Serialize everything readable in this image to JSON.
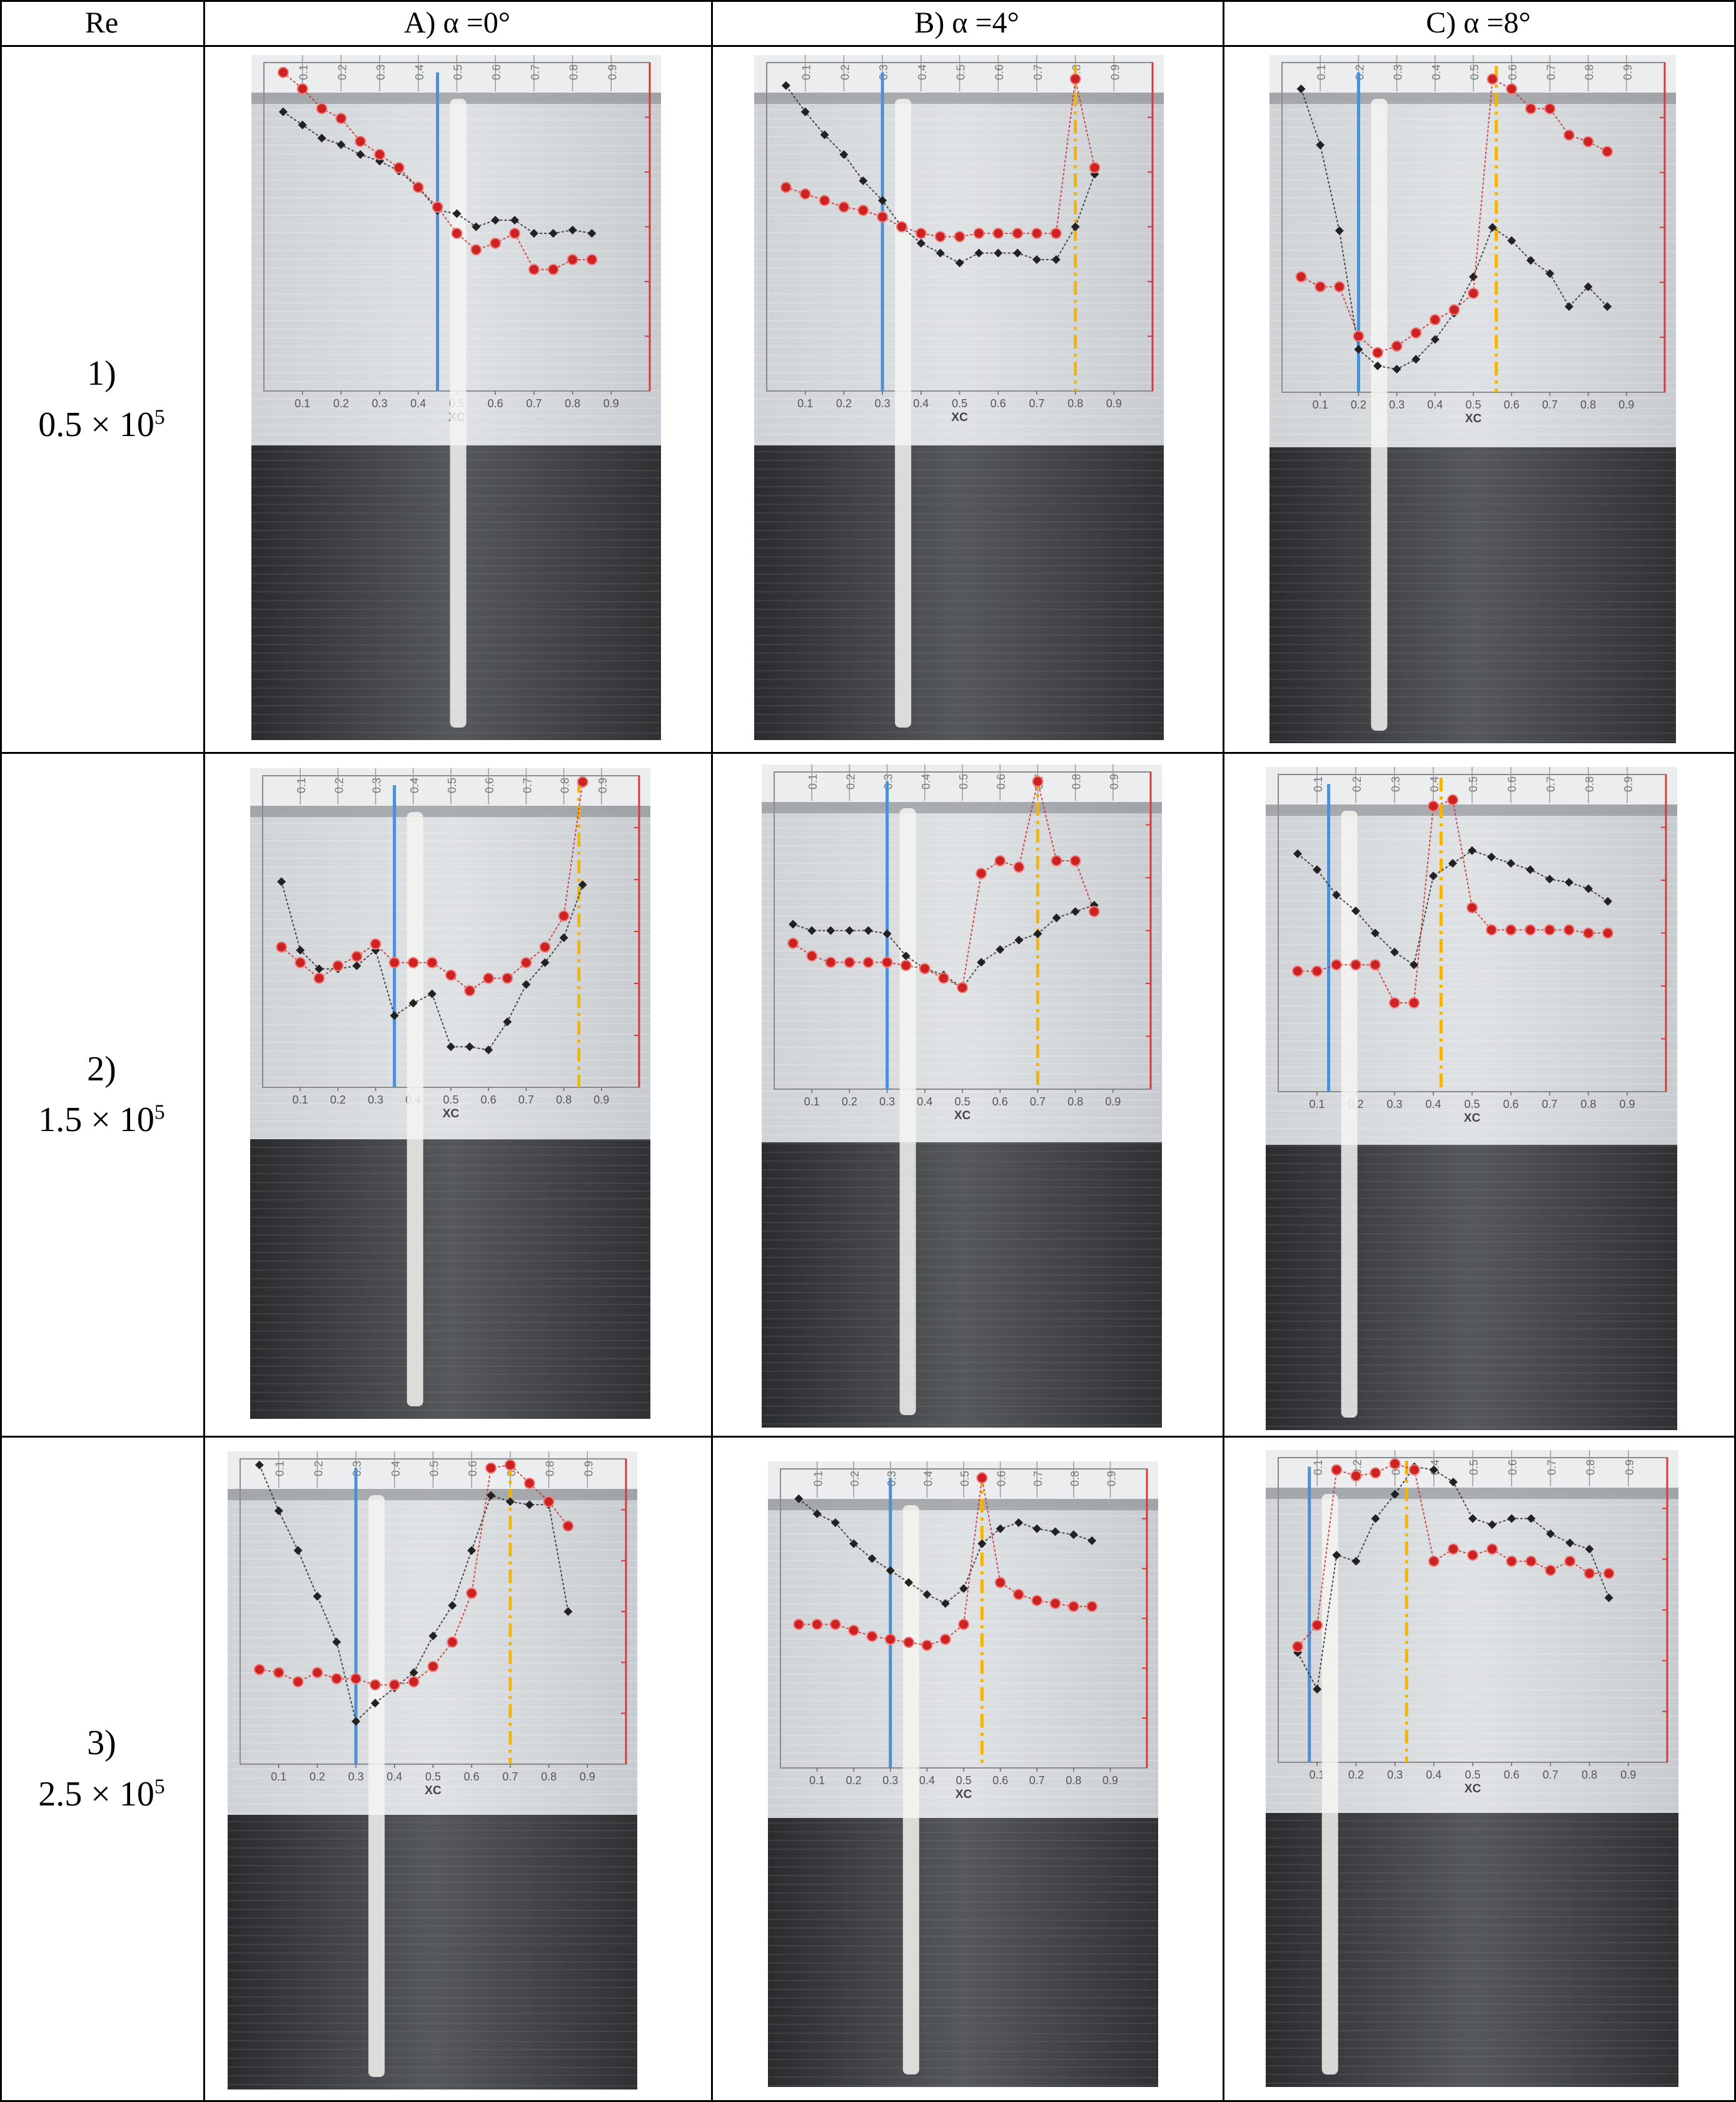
{
  "header": {
    "re_label": "Re",
    "columns": [
      {
        "label": "A)   α =0°"
      },
      {
        "label": "B)   α =4°"
      },
      {
        "label": "C)   α =8°"
      }
    ]
  },
  "rows": [
    {
      "index": "1)",
      "value": "0.5 × 10",
      "exp": "5"
    },
    {
      "index": "2)",
      "value": "1.5 × 10",
      "exp": "5"
    },
    {
      "index": "3)",
      "value": "2.5 × 10",
      "exp": "5"
    }
  ],
  "axis": {
    "xlabel": "XC",
    "ticks": [
      "0.1",
      "0.2",
      "0.3",
      "0.4",
      "0.5",
      "0.6",
      "0.7",
      "0.8",
      "0.9"
    ]
  },
  "colors": {
    "red_series": "#cc2222",
    "black_series": "#222222",
    "blue_line": "#4a90d9",
    "orange_line": "#f5b400"
  },
  "chart_data": [
    {
      "type": "scatter",
      "panel": "1A",
      "blue_xc": 0.45,
      "orange_xc": null,
      "red": [
        [
          0.05,
          0.97
        ],
        [
          0.1,
          0.92
        ],
        [
          0.15,
          0.86
        ],
        [
          0.2,
          0.83
        ],
        [
          0.25,
          0.76
        ],
        [
          0.3,
          0.72
        ],
        [
          0.35,
          0.68
        ],
        [
          0.4,
          0.62
        ],
        [
          0.45,
          0.56
        ],
        [
          0.5,
          0.48
        ],
        [
          0.55,
          0.43
        ],
        [
          0.6,
          0.45
        ],
        [
          0.65,
          0.48
        ],
        [
          0.7,
          0.37
        ],
        [
          0.75,
          0.37
        ],
        [
          0.8,
          0.4
        ],
        [
          0.85,
          0.4
        ]
      ],
      "black": [
        [
          0.05,
          0.85
        ],
        [
          0.1,
          0.81
        ],
        [
          0.15,
          0.77
        ],
        [
          0.2,
          0.75
        ],
        [
          0.25,
          0.72
        ],
        [
          0.3,
          0.7
        ],
        [
          0.35,
          0.67
        ],
        [
          0.4,
          0.62
        ],
        [
          0.45,
          0.55
        ],
        [
          0.5,
          0.54
        ],
        [
          0.55,
          0.5
        ],
        [
          0.6,
          0.52
        ],
        [
          0.65,
          0.52
        ],
        [
          0.7,
          0.48
        ],
        [
          0.75,
          0.48
        ],
        [
          0.8,
          0.49
        ],
        [
          0.85,
          0.48
        ]
      ]
    },
    {
      "type": "scatter",
      "panel": "1B",
      "blue_xc": 0.3,
      "orange_xc": 0.8,
      "red": [
        [
          0.05,
          0.62
        ],
        [
          0.1,
          0.6
        ],
        [
          0.15,
          0.58
        ],
        [
          0.2,
          0.56
        ],
        [
          0.25,
          0.55
        ],
        [
          0.3,
          0.53
        ],
        [
          0.35,
          0.5
        ],
        [
          0.4,
          0.48
        ],
        [
          0.45,
          0.47
        ],
        [
          0.5,
          0.47
        ],
        [
          0.55,
          0.48
        ],
        [
          0.6,
          0.48
        ],
        [
          0.65,
          0.48
        ],
        [
          0.7,
          0.48
        ],
        [
          0.75,
          0.48
        ],
        [
          0.8,
          0.95
        ],
        [
          0.85,
          0.68
        ]
      ],
      "black": [
        [
          0.05,
          0.93
        ],
        [
          0.1,
          0.85
        ],
        [
          0.15,
          0.78
        ],
        [
          0.2,
          0.72
        ],
        [
          0.25,
          0.64
        ],
        [
          0.3,
          0.58
        ],
        [
          0.35,
          0.5
        ],
        [
          0.4,
          0.45
        ],
        [
          0.45,
          0.42
        ],
        [
          0.5,
          0.39
        ],
        [
          0.55,
          0.42
        ],
        [
          0.6,
          0.42
        ],
        [
          0.65,
          0.42
        ],
        [
          0.7,
          0.4
        ],
        [
          0.75,
          0.4
        ],
        [
          0.8,
          0.5
        ],
        [
          0.85,
          0.66
        ]
      ]
    },
    {
      "type": "scatter",
      "panel": "1C",
      "blue_xc": 0.2,
      "orange_xc": 0.56,
      "red": [
        [
          0.05,
          0.35
        ],
        [
          0.1,
          0.32
        ],
        [
          0.15,
          0.32
        ],
        [
          0.2,
          0.17
        ],
        [
          0.25,
          0.12
        ],
        [
          0.3,
          0.14
        ],
        [
          0.35,
          0.18
        ],
        [
          0.4,
          0.22
        ],
        [
          0.45,
          0.25
        ],
        [
          0.5,
          0.3
        ],
        [
          0.55,
          0.95
        ],
        [
          0.6,
          0.92
        ],
        [
          0.65,
          0.86
        ],
        [
          0.7,
          0.86
        ],
        [
          0.75,
          0.78
        ],
        [
          0.8,
          0.76
        ],
        [
          0.85,
          0.73
        ]
      ],
      "black": [
        [
          0.05,
          0.92
        ],
        [
          0.1,
          0.75
        ],
        [
          0.15,
          0.49
        ],
        [
          0.2,
          0.13
        ],
        [
          0.25,
          0.08
        ],
        [
          0.3,
          0.07
        ],
        [
          0.35,
          0.1
        ],
        [
          0.4,
          0.16
        ],
        [
          0.45,
          0.24
        ],
        [
          0.5,
          0.35
        ],
        [
          0.55,
          0.5
        ],
        [
          0.6,
          0.46
        ],
        [
          0.65,
          0.4
        ],
        [
          0.7,
          0.36
        ],
        [
          0.75,
          0.26
        ],
        [
          0.8,
          0.32
        ],
        [
          0.85,
          0.26
        ]
      ]
    },
    {
      "type": "scatter",
      "panel": "2A",
      "blue_xc": 0.35,
      "orange_xc": 0.84,
      "red": [
        [
          0.05,
          0.45
        ],
        [
          0.1,
          0.4
        ],
        [
          0.15,
          0.35
        ],
        [
          0.2,
          0.39
        ],
        [
          0.25,
          0.42
        ],
        [
          0.3,
          0.46
        ],
        [
          0.35,
          0.4
        ],
        [
          0.4,
          0.4
        ],
        [
          0.45,
          0.4
        ],
        [
          0.5,
          0.36
        ],
        [
          0.55,
          0.31
        ],
        [
          0.6,
          0.35
        ],
        [
          0.65,
          0.35
        ],
        [
          0.7,
          0.4
        ],
        [
          0.75,
          0.45
        ],
        [
          0.8,
          0.55
        ],
        [
          0.85,
          0.98
        ]
      ],
      "black": [
        [
          0.05,
          0.66
        ],
        [
          0.1,
          0.44
        ],
        [
          0.15,
          0.38
        ],
        [
          0.2,
          0.38
        ],
        [
          0.25,
          0.39
        ],
        [
          0.3,
          0.44
        ],
        [
          0.35,
          0.23
        ],
        [
          0.4,
          0.27
        ],
        [
          0.45,
          0.3
        ],
        [
          0.5,
          0.13
        ],
        [
          0.55,
          0.13
        ],
        [
          0.6,
          0.12
        ],
        [
          0.65,
          0.21
        ],
        [
          0.7,
          0.33
        ],
        [
          0.75,
          0.4
        ],
        [
          0.8,
          0.48
        ],
        [
          0.85,
          0.65
        ]
      ]
    },
    {
      "type": "scatter",
      "panel": "2B",
      "blue_xc": 0.3,
      "orange_xc": 0.7,
      "red": [
        [
          0.05,
          0.46
        ],
        [
          0.1,
          0.42
        ],
        [
          0.15,
          0.4
        ],
        [
          0.2,
          0.4
        ],
        [
          0.25,
          0.4
        ],
        [
          0.3,
          0.4
        ],
        [
          0.35,
          0.39
        ],
        [
          0.4,
          0.38
        ],
        [
          0.45,
          0.35
        ],
        [
          0.5,
          0.32
        ],
        [
          0.55,
          0.68
        ],
        [
          0.6,
          0.72
        ],
        [
          0.65,
          0.7
        ],
        [
          0.7,
          0.97
        ],
        [
          0.75,
          0.72
        ],
        [
          0.8,
          0.72
        ],
        [
          0.85,
          0.56
        ]
      ],
      "black": [
        [
          0.05,
          0.52
        ],
        [
          0.1,
          0.5
        ],
        [
          0.15,
          0.5
        ],
        [
          0.2,
          0.5
        ],
        [
          0.25,
          0.5
        ],
        [
          0.3,
          0.49
        ],
        [
          0.35,
          0.42
        ],
        [
          0.4,
          0.38
        ],
        [
          0.45,
          0.36
        ],
        [
          0.5,
          0.32
        ],
        [
          0.55,
          0.4
        ],
        [
          0.6,
          0.44
        ],
        [
          0.65,
          0.47
        ],
        [
          0.7,
          0.49
        ],
        [
          0.75,
          0.54
        ],
        [
          0.8,
          0.56
        ],
        [
          0.85,
          0.58
        ]
      ]
    },
    {
      "type": "scatter",
      "panel": "2C",
      "blue_xc": 0.13,
      "orange_xc": 0.42,
      "red": [
        [
          0.05,
          0.38
        ],
        [
          0.1,
          0.38
        ],
        [
          0.15,
          0.4
        ],
        [
          0.2,
          0.4
        ],
        [
          0.25,
          0.4
        ],
        [
          0.3,
          0.28
        ],
        [
          0.35,
          0.28
        ],
        [
          0.4,
          0.9
        ],
        [
          0.45,
          0.92
        ],
        [
          0.5,
          0.58
        ],
        [
          0.55,
          0.51
        ],
        [
          0.6,
          0.51
        ],
        [
          0.65,
          0.51
        ],
        [
          0.7,
          0.51
        ],
        [
          0.75,
          0.51
        ],
        [
          0.8,
          0.5
        ],
        [
          0.85,
          0.5
        ]
      ],
      "black": [
        [
          0.05,
          0.75
        ],
        [
          0.1,
          0.7
        ],
        [
          0.15,
          0.62
        ],
        [
          0.2,
          0.57
        ],
        [
          0.25,
          0.5
        ],
        [
          0.3,
          0.44
        ],
        [
          0.35,
          0.4
        ],
        [
          0.4,
          0.68
        ],
        [
          0.45,
          0.72
        ],
        [
          0.5,
          0.76
        ],
        [
          0.55,
          0.74
        ],
        [
          0.6,
          0.72
        ],
        [
          0.65,
          0.7
        ],
        [
          0.7,
          0.67
        ],
        [
          0.75,
          0.66
        ],
        [
          0.8,
          0.64
        ],
        [
          0.85,
          0.6
        ]
      ]
    },
    {
      "type": "scatter",
      "panel": "3A",
      "blue_xc": 0.3,
      "orange_xc": 0.7,
      "red": [
        [
          0.05,
          0.31
        ],
        [
          0.1,
          0.3
        ],
        [
          0.15,
          0.27
        ],
        [
          0.2,
          0.3
        ],
        [
          0.25,
          0.28
        ],
        [
          0.3,
          0.28
        ],
        [
          0.35,
          0.26
        ],
        [
          0.4,
          0.26
        ],
        [
          0.45,
          0.27
        ],
        [
          0.5,
          0.32
        ],
        [
          0.55,
          0.4
        ],
        [
          0.6,
          0.56
        ],
        [
          0.65,
          0.97
        ],
        [
          0.7,
          0.98
        ],
        [
          0.75,
          0.92
        ],
        [
          0.8,
          0.86
        ],
        [
          0.85,
          0.78
        ]
      ],
      "black": [
        [
          0.05,
          0.98
        ],
        [
          0.1,
          0.83
        ],
        [
          0.15,
          0.7
        ],
        [
          0.2,
          0.55
        ],
        [
          0.25,
          0.4
        ],
        [
          0.3,
          0.14
        ],
        [
          0.35,
          0.2
        ],
        [
          0.4,
          0.25
        ],
        [
          0.45,
          0.3
        ],
        [
          0.5,
          0.42
        ],
        [
          0.55,
          0.52
        ],
        [
          0.6,
          0.7
        ],
        [
          0.65,
          0.88
        ],
        [
          0.7,
          0.86
        ],
        [
          0.75,
          0.85
        ],
        [
          0.8,
          0.85
        ],
        [
          0.85,
          0.5
        ]
      ]
    },
    {
      "type": "scatter",
      "panel": "3B",
      "blue_xc": 0.3,
      "orange_xc": 0.55,
      "red": [
        [
          0.05,
          0.48
        ],
        [
          0.1,
          0.48
        ],
        [
          0.15,
          0.48
        ],
        [
          0.2,
          0.46
        ],
        [
          0.25,
          0.44
        ],
        [
          0.3,
          0.43
        ],
        [
          0.35,
          0.42
        ],
        [
          0.4,
          0.41
        ],
        [
          0.45,
          0.43
        ],
        [
          0.5,
          0.48
        ],
        [
          0.55,
          0.97
        ],
        [
          0.6,
          0.62
        ],
        [
          0.65,
          0.58
        ],
        [
          0.7,
          0.56
        ],
        [
          0.75,
          0.55
        ],
        [
          0.8,
          0.54
        ],
        [
          0.85,
          0.54
        ]
      ],
      "black": [
        [
          0.05,
          0.9
        ],
        [
          0.1,
          0.85
        ],
        [
          0.15,
          0.82
        ],
        [
          0.2,
          0.75
        ],
        [
          0.25,
          0.7
        ],
        [
          0.3,
          0.66
        ],
        [
          0.35,
          0.62
        ],
        [
          0.4,
          0.58
        ],
        [
          0.45,
          0.55
        ],
        [
          0.5,
          0.6
        ],
        [
          0.55,
          0.75
        ],
        [
          0.6,
          0.8
        ],
        [
          0.65,
          0.82
        ],
        [
          0.7,
          0.8
        ],
        [
          0.75,
          0.79
        ],
        [
          0.8,
          0.78
        ],
        [
          0.85,
          0.76
        ]
      ]
    },
    {
      "type": "scatter",
      "panel": "3C",
      "blue_xc": 0.08,
      "orange_xc": 0.33,
      "red": [
        [
          0.05,
          0.38
        ],
        [
          0.1,
          0.45
        ],
        [
          0.15,
          0.96
        ],
        [
          0.2,
          0.94
        ],
        [
          0.25,
          0.95
        ],
        [
          0.3,
          0.98
        ],
        [
          0.35,
          0.96
        ],
        [
          0.4,
          0.66
        ],
        [
          0.45,
          0.7
        ],
        [
          0.5,
          0.68
        ],
        [
          0.55,
          0.7
        ],
        [
          0.6,
          0.66
        ],
        [
          0.65,
          0.66
        ],
        [
          0.7,
          0.63
        ],
        [
          0.75,
          0.66
        ],
        [
          0.8,
          0.62
        ],
        [
          0.85,
          0.62
        ]
      ],
      "black": [
        [
          0.05,
          0.36
        ],
        [
          0.1,
          0.24
        ],
        [
          0.15,
          0.68
        ],
        [
          0.2,
          0.66
        ],
        [
          0.25,
          0.8
        ],
        [
          0.3,
          0.88
        ],
        [
          0.35,
          0.97
        ],
        [
          0.4,
          0.96
        ],
        [
          0.45,
          0.92
        ],
        [
          0.5,
          0.8
        ],
        [
          0.55,
          0.78
        ],
        [
          0.6,
          0.8
        ],
        [
          0.65,
          0.8
        ],
        [
          0.7,
          0.75
        ],
        [
          0.75,
          0.72
        ],
        [
          0.8,
          0.7
        ],
        [
          0.85,
          0.54
        ]
      ]
    }
  ]
}
